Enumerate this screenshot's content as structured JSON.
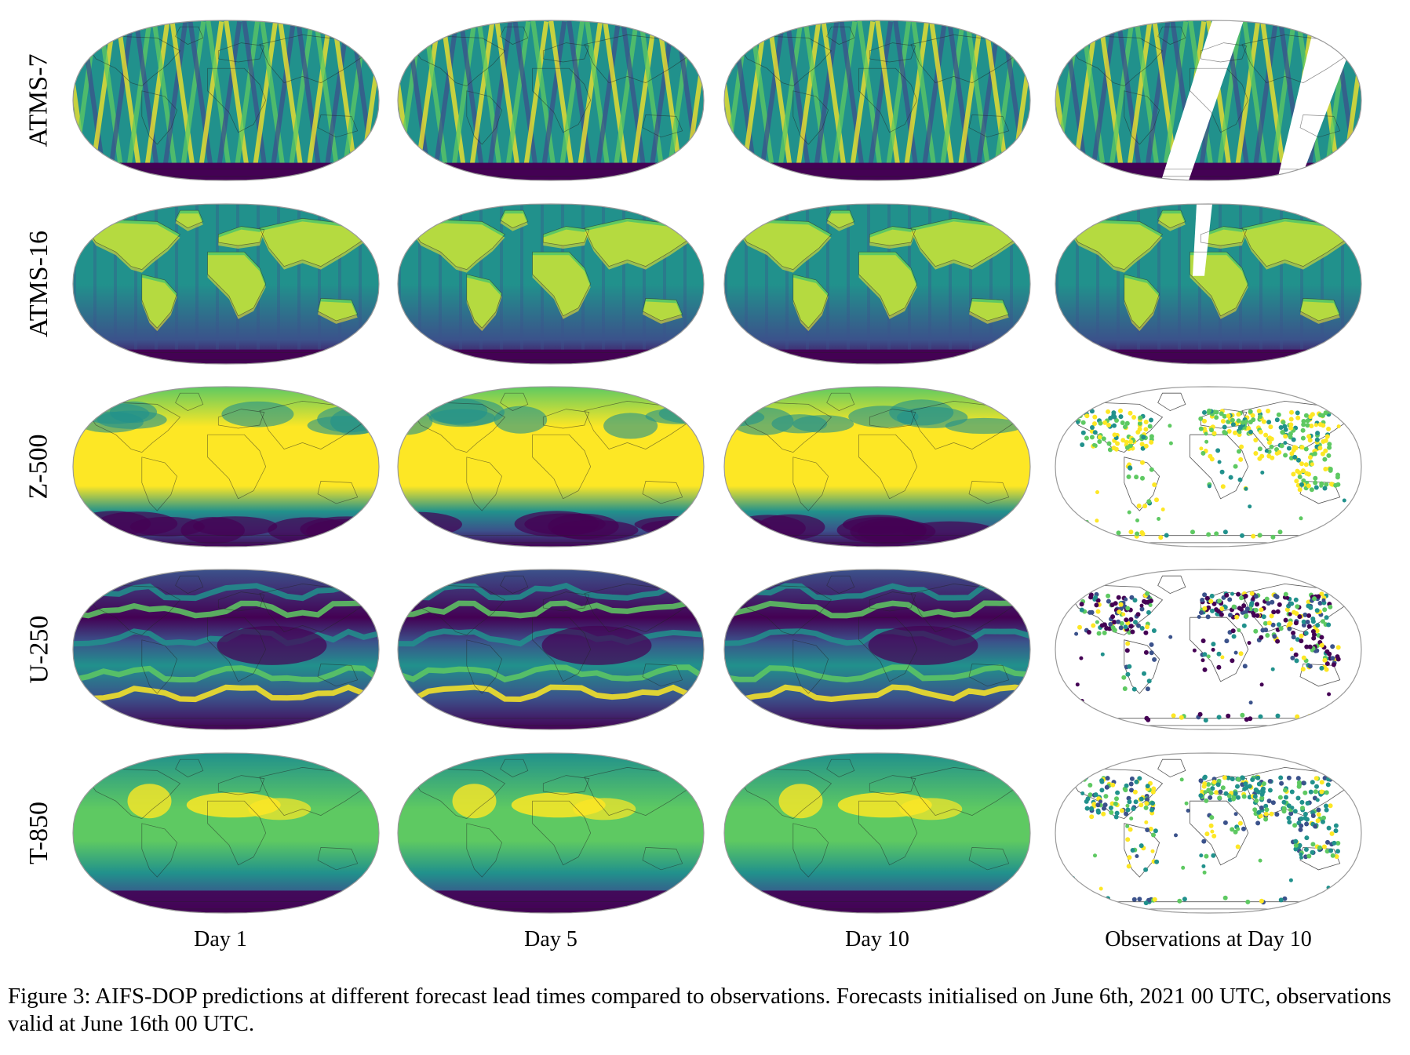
{
  "figure": {
    "rows": [
      {
        "label": "ATMS-7",
        "style": "stripes"
      },
      {
        "label": "ATMS-16",
        "style": "land"
      },
      {
        "label": "Z-500",
        "style": "z500"
      },
      {
        "label": "U-250",
        "style": "jets"
      },
      {
        "label": "T-850",
        "style": "temp"
      }
    ],
    "columns": [
      {
        "label": "Day 1"
      },
      {
        "label": "Day 5"
      },
      {
        "label": "Day 10"
      },
      {
        "label": "Observations at Day 10"
      }
    ],
    "colormap": [
      "#440154",
      "#3b528b",
      "#21918c",
      "#5ec962",
      "#fde725"
    ],
    "caption": "Figure 3: AIFS-DOP predictions at different forecast lead times compared to observations. Forecasts initialised on June 6th, 2021 00 UTC, observations valid at June 16th 00 UTC."
  }
}
